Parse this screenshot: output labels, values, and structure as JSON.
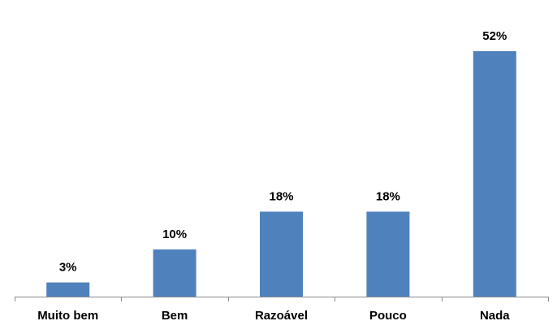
{
  "chart_data": {
    "type": "bar",
    "categories": [
      "Muito bem",
      "Bem",
      "Razoável",
      "Pouco",
      "Nada"
    ],
    "values": [
      3,
      10,
      18,
      18,
      52
    ],
    "value_labels": [
      "3%",
      "10%",
      "18%",
      "18%",
      "52%"
    ],
    "unit": "%",
    "title": "",
    "xlabel": "",
    "ylabel": "",
    "ylim": [
      0,
      52
    ],
    "grid": false,
    "legend": "none",
    "bar_color": "#4F81BD",
    "axis_color": "#8C8C8C"
  }
}
